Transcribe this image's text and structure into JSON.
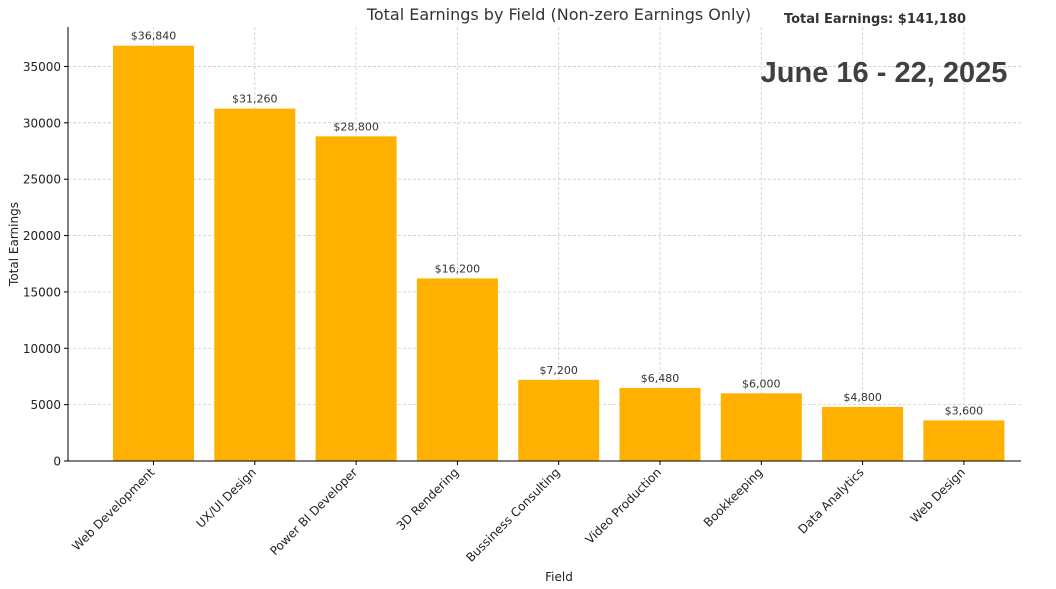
{
  "chart_data": {
    "type": "bar",
    "title": "Total Earnings by Field (Non-zero Earnings Only)",
    "total_label": "Total Earnings: $141,180",
    "date_range": "June 16 - 22, 2025",
    "xlabel": "Field",
    "ylabel": "Total Earnings",
    "ylim": [
      0,
      38500
    ],
    "yticks": [
      0,
      5000,
      10000,
      15000,
      20000,
      25000,
      30000,
      35000
    ],
    "ytick_labels": [
      "0",
      "5000",
      "10000",
      "15000",
      "20000",
      "25000",
      "30000",
      "35000"
    ],
    "grid": true,
    "categories": [
      "Web Development",
      "UX/UI Design",
      "Power BI Developer",
      "3D Rendering",
      "Bussiness Consulting",
      "Video Production",
      "Bookkeeping",
      "Data Analytics",
      "Web Design"
    ],
    "values": [
      36840,
      31260,
      28800,
      16200,
      7200,
      6480,
      6000,
      4800,
      3600
    ],
    "value_labels": [
      "$36,840",
      "$31,260",
      "$28,800",
      "$16,200",
      "$7,200",
      "$6,480",
      "$6,000",
      "$4,800",
      "$3,600"
    ],
    "colors": {
      "bar": "#FFB000",
      "grid": "#cccccc",
      "text": "#333333"
    }
  }
}
